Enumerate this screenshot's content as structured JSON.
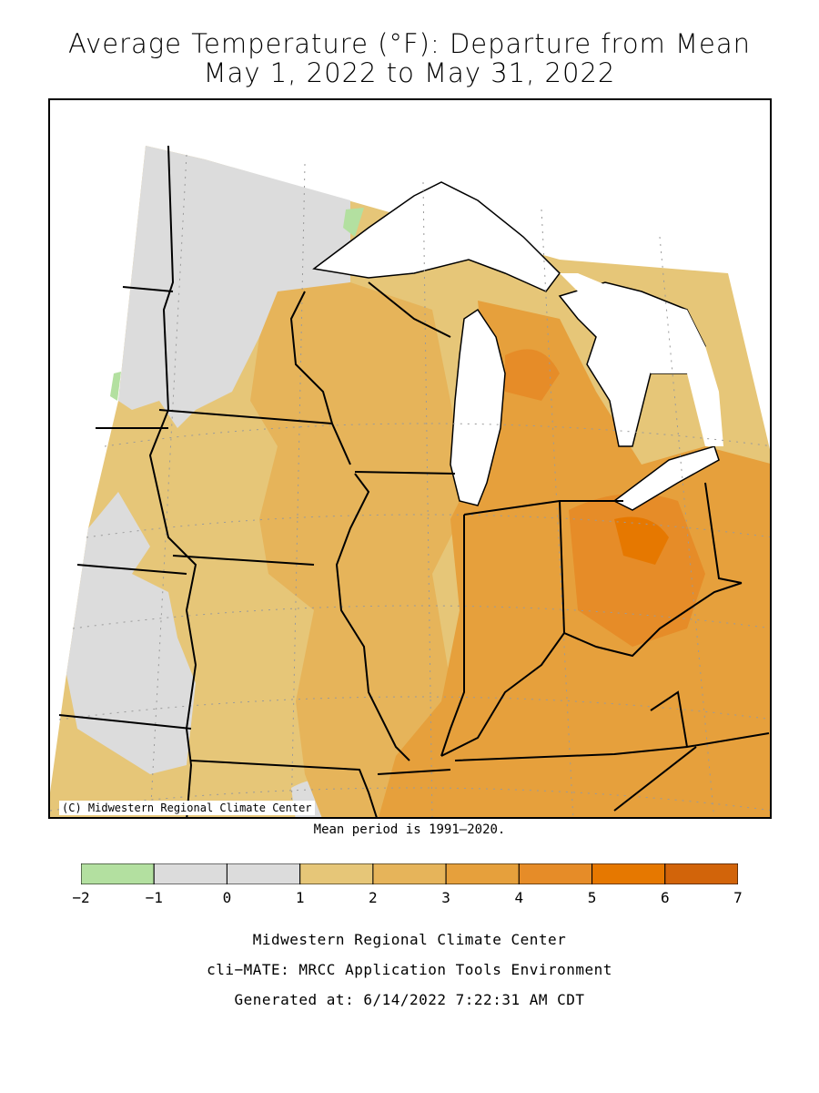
{
  "title": {
    "line1": "Average Temperature (°F): Departure from Mean",
    "line2": "May 1, 2022 to May 31, 2022"
  },
  "map": {
    "credit": "(C) Midwestern Regional Climate Center",
    "region": "Upper Midwest / Great Lakes",
    "colors": {
      "lake": "#ffffff",
      "border": "#000000",
      "grid": "#9a9a9a"
    },
    "regions": [
      {
        "name": "Minnesota (north)",
        "bin": "0 to 1"
      },
      {
        "name": "Minnesota (south) / Iowa",
        "bin": "1 to 2"
      },
      {
        "name": "Wisconsin",
        "bin": "2 to 3"
      },
      {
        "name": "Michigan Lower Peninsula",
        "bin": "3 to 4"
      },
      {
        "name": "Indiana",
        "bin": "3 to 4"
      },
      {
        "name": "Ohio",
        "bin": "4 to 5"
      },
      {
        "name": "NW Ohio core",
        "bin": "5 to 6"
      },
      {
        "name": "Kentucky",
        "bin": "3 to 4"
      },
      {
        "name": "Illinois",
        "bin": "2 to 3"
      }
    ]
  },
  "mean_period": "Mean period is 1991–2020.",
  "legend": {
    "bins": [
      {
        "min": -2,
        "max": -1,
        "color": "#b3e0a0"
      },
      {
        "min": -1,
        "max": 0,
        "color": "#dcdcdc"
      },
      {
        "min": 0,
        "max": 1,
        "color": "#dcdcdc"
      },
      {
        "min": 1,
        "max": 2,
        "color": "#e6c678"
      },
      {
        "min": 2,
        "max": 3,
        "color": "#e6b45a"
      },
      {
        "min": 3,
        "max": 4,
        "color": "#e6a03c"
      },
      {
        "min": 4,
        "max": 5,
        "color": "#e68c28"
      },
      {
        "min": 5,
        "max": 6,
        "color": "#e67800"
      },
      {
        "min": 6,
        "max": 7,
        "color": "#d2640a"
      }
    ],
    "ticks": [
      "−2",
      "−1",
      "0",
      "1",
      "2",
      "3",
      "4",
      "5",
      "6",
      "7"
    ]
  },
  "footer": {
    "line1": "Midwestern Regional Climate Center",
    "line2": "cli−MATE: MRCC Application Tools Environment",
    "line3": "Generated at: 6/14/2022 7:22:31 AM CDT"
  }
}
